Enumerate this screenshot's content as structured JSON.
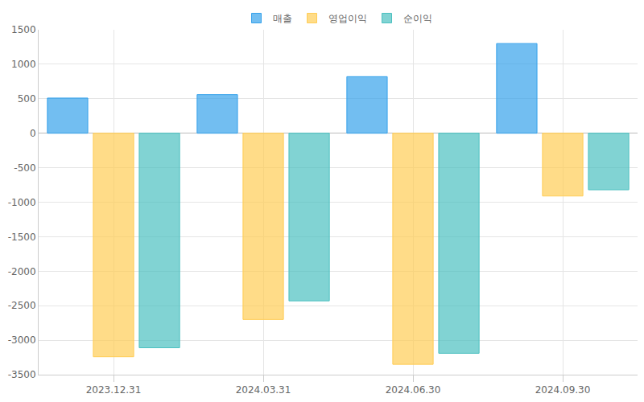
{
  "chart_data": {
    "type": "bar",
    "categories": [
      "2023.12.31",
      "2024.03.31",
      "2024.06.30",
      "2024.09.30"
    ],
    "series": [
      {
        "name": "매출",
        "color": "#36a2eb",
        "values": [
          510,
          560,
          820,
          1300
        ]
      },
      {
        "name": "영업이익",
        "color": "#ffcd56",
        "values": [
          -3240,
          -2700,
          -3350,
          -910
        ]
      },
      {
        "name": "순이익",
        "color": "#4bc0c0",
        "values": [
          -3110,
          -2430,
          -3190,
          -820
        ]
      }
    ],
    "ylim": [
      -3500,
      1500
    ],
    "yticks": [
      -3500,
      -3000,
      -2500,
      -2000,
      -1500,
      -1000,
      -500,
      0,
      500,
      1000,
      1500
    ],
    "grid": true,
    "legend": "top"
  }
}
